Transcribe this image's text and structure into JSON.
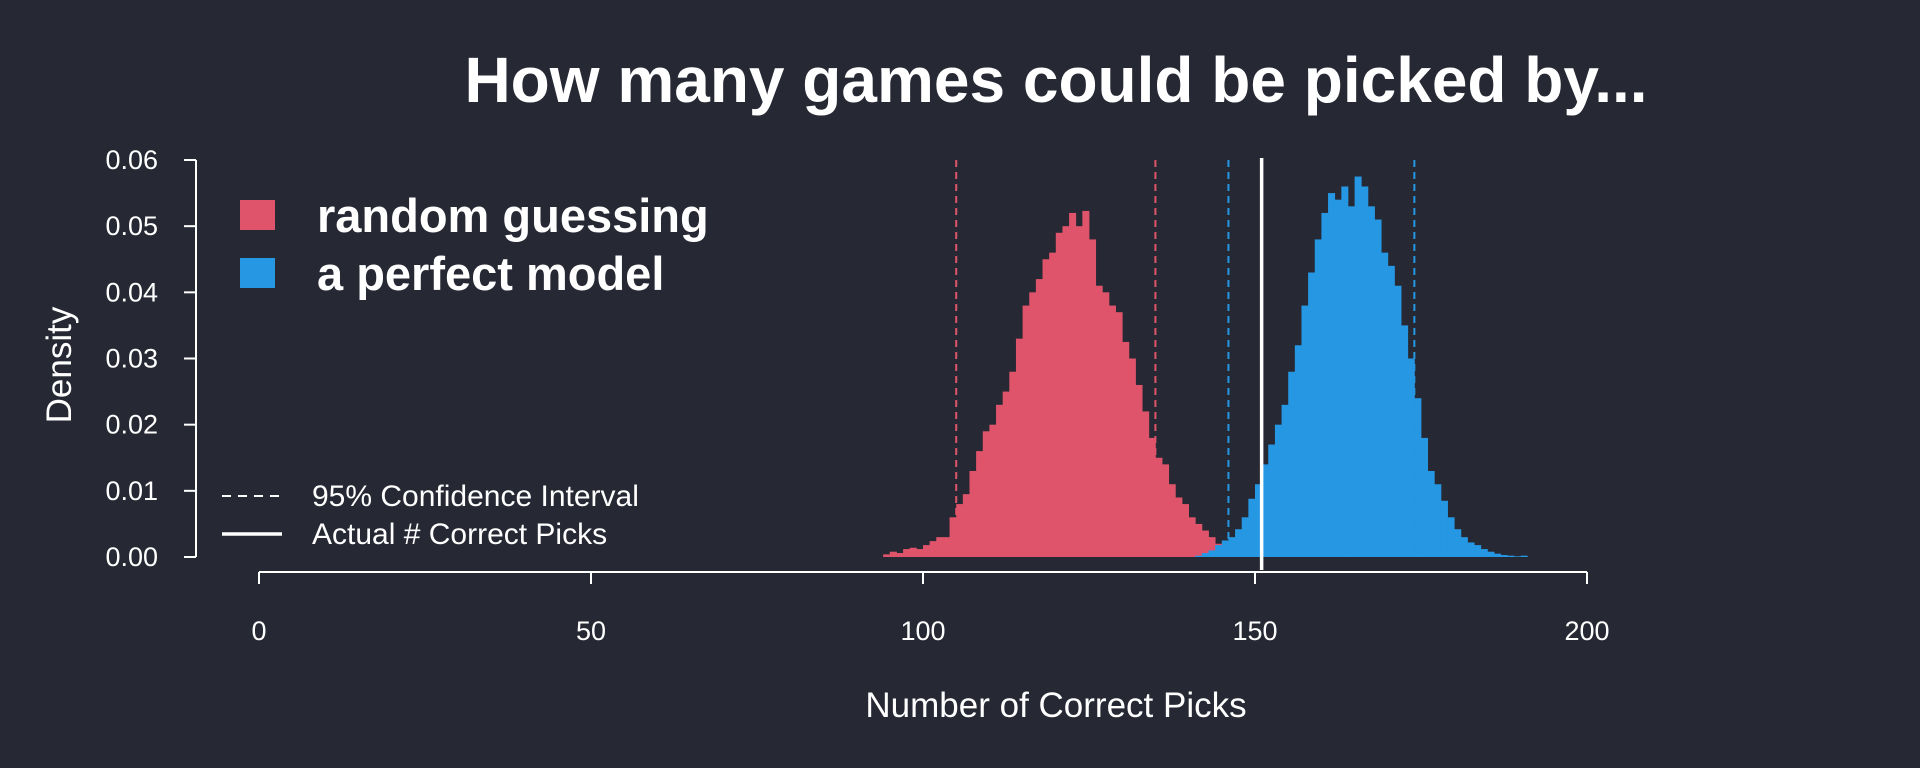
{
  "chart_data": {
    "type": "histogram",
    "title": "How many games could be picked by...",
    "xlabel": "Number of Correct Picks",
    "ylabel": "Density",
    "xlim": [
      0,
      200
    ],
    "ylim": [
      0,
      0.06
    ],
    "x_ticks": [
      "0",
      "50",
      "100",
      "150",
      "200"
    ],
    "y_ticks": [
      "0.00",
      "0.01",
      "0.02",
      "0.03",
      "0.04",
      "0.05",
      "0.06"
    ],
    "bin_width": 1,
    "series": [
      {
        "name": "random guessing",
        "color": "#e0546b",
        "bins": [
          [
            94,
            0.0004
          ],
          [
            95,
            0.0008
          ],
          [
            96,
            0.0006
          ],
          [
            97,
            0.0012
          ],
          [
            98,
            0.0014
          ],
          [
            99,
            0.0012
          ],
          [
            100,
            0.0018
          ],
          [
            101,
            0.0024
          ],
          [
            102,
            0.003
          ],
          [
            103,
            0.003
          ],
          [
            104,
            0.006
          ],
          [
            105,
            0.008
          ],
          [
            106,
            0.0095
          ],
          [
            107,
            0.013
          ],
          [
            108,
            0.016
          ],
          [
            109,
            0.019
          ],
          [
            110,
            0.02
          ],
          [
            111,
            0.023
          ],
          [
            112,
            0.025
          ],
          [
            113,
            0.028
          ],
          [
            114,
            0.033
          ],
          [
            115,
            0.038
          ],
          [
            116,
            0.04
          ],
          [
            117,
            0.042
          ],
          [
            118,
            0.045
          ],
          [
            119,
            0.046
          ],
          [
            120,
            0.049
          ],
          [
            121,
            0.05
          ],
          [
            122,
            0.052
          ],
          [
            123,
            0.05
          ],
          [
            124,
            0.0523
          ],
          [
            125,
            0.048
          ],
          [
            126,
            0.041
          ],
          [
            127,
            0.04
          ],
          [
            128,
            0.038
          ],
          [
            129,
            0.037
          ],
          [
            130,
            0.0325
          ],
          [
            131,
            0.03
          ],
          [
            132,
            0.026
          ],
          [
            133,
            0.022
          ],
          [
            134,
            0.018
          ],
          [
            135,
            0.015
          ],
          [
            136,
            0.014
          ],
          [
            137,
            0.011
          ],
          [
            138,
            0.009
          ],
          [
            139,
            0.008
          ],
          [
            140,
            0.006
          ],
          [
            141,
            0.005
          ],
          [
            142,
            0.004
          ],
          [
            143,
            0.003
          ],
          [
            144,
            0.002
          ],
          [
            145,
            0.0015
          ],
          [
            146,
            0.0012
          ],
          [
            147,
            0.0008
          ],
          [
            148,
            0.0006
          ],
          [
            149,
            0.0004
          ],
          [
            150,
            0.0003
          ],
          [
            151,
            0.0002
          ],
          [
            152,
            0.0001
          ]
        ],
        "ci": [
          105,
          135
        ]
      },
      {
        "name": "a perfect model",
        "color": "#2597e3",
        "bins": [
          [
            141,
            0.0002
          ],
          [
            142,
            0.0006
          ],
          [
            143,
            0.001
          ],
          [
            144,
            0.0018
          ],
          [
            145,
            0.0025
          ],
          [
            146,
            0.003
          ],
          [
            147,
            0.0042
          ],
          [
            148,
            0.006
          ],
          [
            149,
            0.0088
          ],
          [
            150,
            0.011
          ],
          [
            151,
            0.014
          ],
          [
            152,
            0.017
          ],
          [
            153,
            0.02
          ],
          [
            154,
            0.023
          ],
          [
            155,
            0.028
          ],
          [
            156,
            0.032
          ],
          [
            157,
            0.038
          ],
          [
            158,
            0.043
          ],
          [
            159,
            0.048
          ],
          [
            160,
            0.052
          ],
          [
            161,
            0.055
          ],
          [
            162,
            0.054
          ],
          [
            163,
            0.056
          ],
          [
            164,
            0.053
          ],
          [
            165,
            0.0575
          ],
          [
            166,
            0.056
          ],
          [
            167,
            0.053
          ],
          [
            168,
            0.051
          ],
          [
            169,
            0.046
          ],
          [
            170,
            0.044
          ],
          [
            171,
            0.041
          ],
          [
            172,
            0.035
          ],
          [
            173,
            0.03
          ],
          [
            174,
            0.024
          ],
          [
            175,
            0.018
          ],
          [
            176,
            0.013
          ],
          [
            177,
            0.011
          ],
          [
            178,
            0.0085
          ],
          [
            179,
            0.006
          ],
          [
            180,
            0.0042
          ],
          [
            181,
            0.003
          ],
          [
            182,
            0.0022
          ],
          [
            183,
            0.0018
          ],
          [
            184,
            0.0012
          ],
          [
            185,
            0.0008
          ],
          [
            186,
            0.0005
          ],
          [
            187,
            0.0003
          ],
          [
            188,
            0.0002
          ],
          [
            189,
            0.0001
          ],
          [
            190,
            0.0002
          ]
        ],
        "ci": [
          146,
          174
        ]
      }
    ],
    "actual_correct_picks": 151,
    "legend": {
      "placement": "top-left",
      "ci_label": "95% Confidence Interval",
      "actual_label": "Actual # Correct Picks"
    },
    "background_color": "#262833",
    "grid": false
  }
}
